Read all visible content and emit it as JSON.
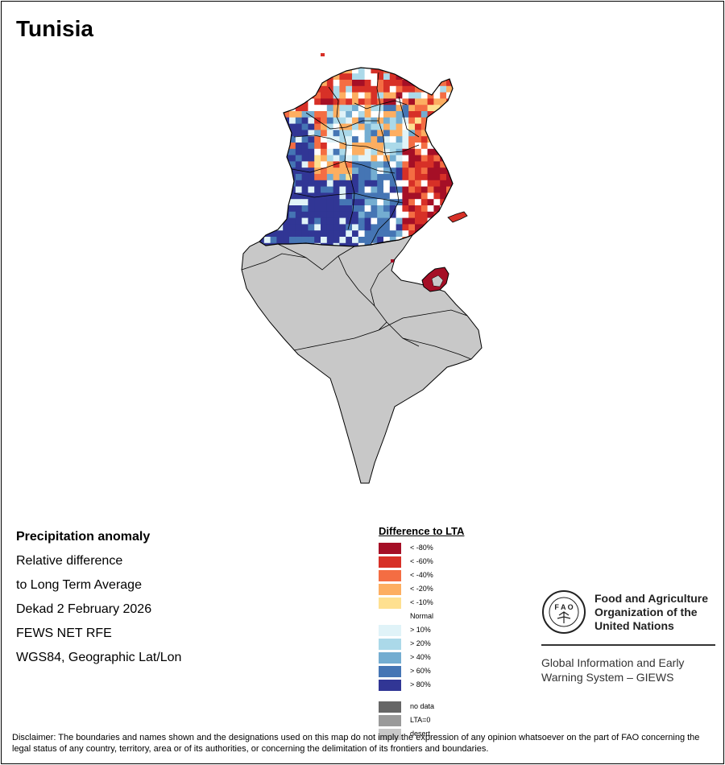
{
  "header": {
    "title": "Tunisia"
  },
  "info": {
    "line1": "Precipitation anomaly",
    "line2": "Relative difference",
    "line3": "to Long Term Average",
    "line4": "Dekad 2 February 2026",
    "line5": "FEWS NET RFE",
    "line6": "WGS84, Geographic Lat/Lon"
  },
  "legend": {
    "title": "Difference to LTA",
    "items": [
      {
        "label": "< -80%",
        "color": "#a50f26"
      },
      {
        "label": "< -60%",
        "color": "#d73027"
      },
      {
        "label": "< -40%",
        "color": "#f46d43"
      },
      {
        "label": "< -20%",
        "color": "#fdae61"
      },
      {
        "label": "< -10%",
        "color": "#fee090"
      },
      {
        "label": "Normal",
        "color": "#ffffff"
      },
      {
        "label": "> 10%",
        "color": "#e0f3f8"
      },
      {
        "label": "> 20%",
        "color": "#abd9e9"
      },
      {
        "label": "> 40%",
        "color": "#74add1"
      },
      {
        "label": "> 60%",
        "color": "#4575b4"
      },
      {
        "label": "> 80%",
        "color": "#313695"
      }
    ],
    "extras": [
      {
        "label": "no data",
        "color": "#666666"
      },
      {
        "label": "LTA=0",
        "color": "#999999"
      },
      {
        "label": "desert",
        "color": "#c8c8c8"
      }
    ]
  },
  "fao": {
    "name_line1": "Food and Agriculture",
    "name_line2": "Organization of the",
    "name_line3": "United Nations",
    "giews_line1": "Global Information and Early",
    "giews_line2": "Warning System – GIEWS"
  },
  "disclaimer": "Disclaimer: The boundaries and names shown and the designations used on this map do not imply the expression of any opinion whatsoever on the part of FAO concerning the legal status of any country, territory, area or of its authorities, or concerning the delimitation of its frontiers and boundaries."
}
